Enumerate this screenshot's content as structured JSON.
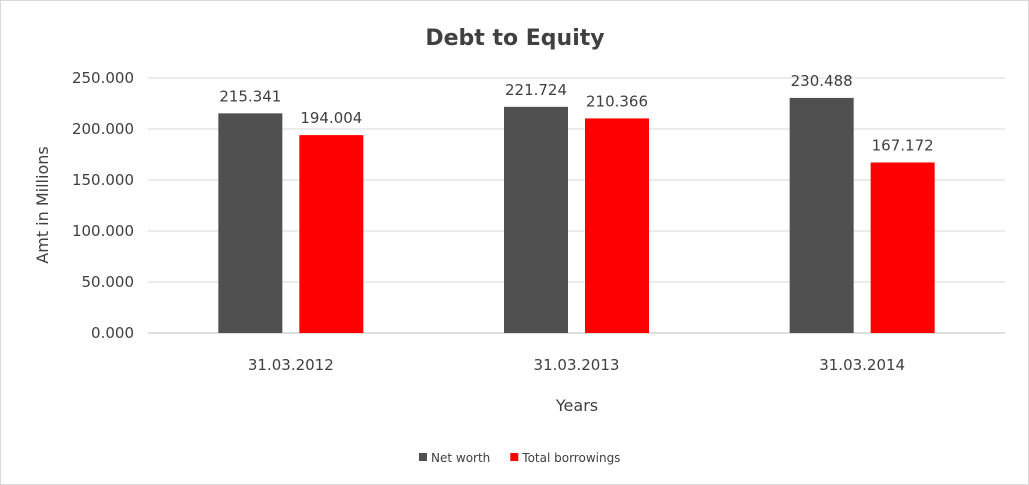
{
  "chart_data": {
    "type": "bar",
    "title": "Debt to Equity",
    "xlabel": "Years",
    "ylabel": "Amt in Millions",
    "categories": [
      "31.03.2012",
      "31.03.2013",
      "31.03.2014"
    ],
    "series": [
      {
        "name": "Net worth",
        "color": "#505050",
        "values": [
          215.341,
          221.724,
          230.488
        ],
        "labels": [
          "215.341",
          "221.724",
          "230.488"
        ]
      },
      {
        "name": "Total borrowings",
        "color": "#ff0000",
        "values": [
          194.004,
          210.366,
          167.172
        ],
        "labels": [
          "194.004",
          "210.366",
          "167.172"
        ]
      }
    ],
    "ylim": [
      0,
      250
    ],
    "yticks": [
      "0.000",
      "50.000",
      "100.000",
      "150.000",
      "200.000",
      "250.000"
    ],
    "grid": true,
    "legend_position": "bottom"
  }
}
